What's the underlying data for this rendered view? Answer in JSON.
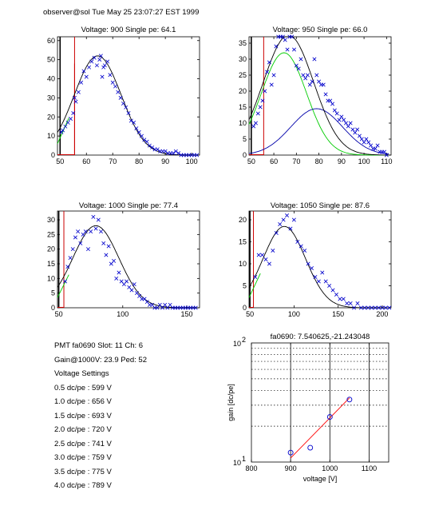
{
  "header": "observer@sol  Tue May 25 23:07:27 EST 1999",
  "info": {
    "pmt_line": "PMT fa0690 Slot: 11 Ch: 6",
    "gain_line": "Gain@1000V: 23.9 Ped: 52",
    "settings_title": "Voltage Settings",
    "settings": [
      "0.5 dc/pe : 599 V",
      "1.0 dc/pe : 656 V",
      "1.5 dc/pe : 693 V",
      "2.0 dc/pe : 720 V",
      "2.5 dc/pe : 741 V",
      "3.0 dc/pe : 759 V",
      "3.5 dc/pe : 775 V",
      "4.0 dc/pe : 789 V"
    ]
  },
  "colors": {
    "data": "#0000cc",
    "fit": "#000000",
    "single_pe": "#00cc00",
    "second_pe": "#0000aa",
    "pedestal": "#cc0000",
    "gain_fit": "#ff0000"
  },
  "chart_data": [
    {
      "type": "scatter",
      "title": "Voltage: 900 Single pe: 64.1",
      "xlim": [
        49,
        103
      ],
      "ylim": [
        0,
        62
      ],
      "xticks": [
        50,
        60,
        70,
        80,
        90,
        100
      ],
      "yticks": [
        0,
        10,
        20,
        30,
        40,
        50,
        60
      ],
      "pedestal_marks": [
        {
          "x": 50,
          "y": 62
        },
        {
          "x": 55.5,
          "y": 62
        },
        {
          "x": 55.5,
          "y": 48
        }
      ],
      "fit": {
        "peak": 52,
        "mean": 64.3,
        "sigma": 8.9,
        "from": 49,
        "to": 100
      },
      "points": [
        [
          50.5,
          12
        ],
        [
          51,
          13
        ],
        [
          52,
          15
        ],
        [
          53,
          17
        ],
        [
          54,
          19
        ],
        [
          55,
          22
        ],
        [
          55.5,
          30
        ],
        [
          56,
          28
        ],
        [
          57,
          33
        ],
        [
          58,
          38
        ],
        [
          59,
          44
        ],
        [
          60,
          41
        ],
        [
          61,
          46
        ],
        [
          62,
          49
        ],
        [
          63,
          51
        ],
        [
          64,
          47
        ],
        [
          65,
          50
        ],
        [
          65.5,
          52
        ],
        [
          66,
          41
        ],
        [
          66.5,
          46
        ],
        [
          67,
          47
        ],
        [
          68,
          49
        ],
        [
          69,
          42
        ],
        [
          70,
          38
        ],
        [
          71,
          36
        ],
        [
          72,
          33
        ],
        [
          73,
          30
        ],
        [
          74,
          27
        ],
        [
          75,
          25
        ],
        [
          76,
          22
        ],
        [
          77,
          18
        ],
        [
          78,
          17
        ],
        [
          79,
          14
        ],
        [
          80,
          12
        ],
        [
          81,
          10
        ],
        [
          82,
          8
        ],
        [
          83,
          7
        ],
        [
          84,
          5
        ],
        [
          85,
          4
        ],
        [
          86,
          3
        ],
        [
          87,
          3
        ],
        [
          88,
          2
        ],
        [
          89,
          2
        ],
        [
          90,
          2
        ],
        [
          91,
          1
        ],
        [
          92,
          1
        ],
        [
          93,
          1
        ],
        [
          94,
          2
        ],
        [
          95,
          1
        ],
        [
          96,
          0
        ],
        [
          97,
          0
        ],
        [
          98,
          0
        ],
        [
          99,
          0
        ],
        [
          100,
          0
        ],
        [
          101,
          0
        ],
        [
          102,
          0
        ]
      ]
    },
    {
      "type": "scatter",
      "title": "Voltage: 950 Single pe: 66.0",
      "xlim": [
        49,
        112
      ],
      "ylim": [
        0,
        37
      ],
      "xticks": [
        50,
        60,
        70,
        80,
        90,
        100,
        110
      ],
      "yticks": [
        0,
        5,
        10,
        15,
        20,
        25,
        30,
        35
      ],
      "pedestal_marks": [
        {
          "x": 50,
          "y": 37
        },
        {
          "x": 55.5,
          "y": 37
        }
      ],
      "fit": {
        "peak": 37.5,
        "mean": 66.5,
        "sigma": 11.2,
        "from": 49,
        "to": 111
      },
      "fit_components": [
        {
          "color_key": "single_pe",
          "peak": 32,
          "mean": 64.5,
          "sigma": 10,
          "from": 49,
          "to": 111
        },
        {
          "color_key": "second_pe",
          "peak": 14.5,
          "mean": 79,
          "sigma": 11.5,
          "from": 49,
          "to": 111
        }
      ],
      "points": [
        [
          51,
          9
        ],
        [
          52,
          10
        ],
        [
          53,
          13
        ],
        [
          54,
          15
        ],
        [
          55,
          17
        ],
        [
          56,
          20
        ],
        [
          57,
          26
        ],
        [
          58,
          29
        ],
        [
          59,
          22
        ],
        [
          60,
          25
        ],
        [
          61,
          34
        ],
        [
          62,
          38
        ],
        [
          63,
          37
        ],
        [
          64,
          39
        ],
        [
          65,
          36
        ],
        [
          66,
          33
        ],
        [
          67,
          38
        ],
        [
          68,
          37
        ],
        [
          69,
          33
        ],
        [
          70,
          28
        ],
        [
          71,
          27
        ],
        [
          72,
          30
        ],
        [
          73,
          25
        ],
        [
          74,
          24
        ],
        [
          75,
          25
        ],
        [
          76,
          22
        ],
        [
          77,
          23
        ],
        [
          78,
          30
        ],
        [
          79,
          25
        ],
        [
          80,
          23
        ],
        [
          81,
          22
        ],
        [
          82,
          22
        ],
        [
          83,
          19
        ],
        [
          84,
          17
        ],
        [
          85,
          17
        ],
        [
          86,
          16
        ],
        [
          87,
          14
        ],
        [
          88,
          13
        ],
        [
          89,
          11
        ],
        [
          90,
          12
        ],
        [
          91,
          11
        ],
        [
          92,
          10
        ],
        [
          93,
          9
        ],
        [
          94,
          10
        ],
        [
          95,
          8
        ],
        [
          96,
          7
        ],
        [
          97,
          8
        ],
        [
          98,
          6
        ],
        [
          99,
          5
        ],
        [
          100,
          4
        ],
        [
          101,
          5
        ],
        [
          102,
          4
        ],
        [
          103,
          3
        ],
        [
          104,
          2
        ],
        [
          105,
          2
        ],
        [
          106,
          3
        ],
        [
          107,
          1
        ],
        [
          108,
          1
        ],
        [
          109,
          1
        ],
        [
          110,
          0
        ]
      ]
    },
    {
      "type": "scatter",
      "title": "Voltage: 1000 Single pe: 77.4",
      "xlim": [
        49,
        160
      ],
      "ylim": [
        0,
        33
      ],
      "xticks": [
        50,
        100,
        150
      ],
      "yticks": [
        0,
        5,
        10,
        15,
        20,
        25,
        30
      ],
      "pedestal_marks": [
        {
          "x": 50,
          "y": 33
        },
        {
          "x": 54,
          "y": 33
        }
      ],
      "fit": {
        "peak": 28,
        "mean": 79,
        "sigma": 18,
        "from": 49,
        "to": 158
      },
      "points": [
        [
          55,
          9
        ],
        [
          57,
          14
        ],
        [
          59,
          17
        ],
        [
          61,
          20
        ],
        [
          63,
          24
        ],
        [
          65,
          26
        ],
        [
          67,
          22
        ],
        [
          69,
          25
        ],
        [
          71,
          26
        ],
        [
          73,
          20
        ],
        [
          75,
          26
        ],
        [
          77,
          31
        ],
        [
          79,
          27
        ],
        [
          81,
          30
        ],
        [
          83,
          26
        ],
        [
          85,
          22
        ],
        [
          87,
          18
        ],
        [
          89,
          21
        ],
        [
          91,
          15
        ],
        [
          93,
          16
        ],
        [
          95,
          10
        ],
        [
          97,
          12
        ],
        [
          99,
          9
        ],
        [
          101,
          8
        ],
        [
          103,
          9
        ],
        [
          105,
          7
        ],
        [
          107,
          6
        ],
        [
          109,
          8
        ],
        [
          111,
          5
        ],
        [
          113,
          4
        ],
        [
          115,
          3
        ],
        [
          117,
          3
        ],
        [
          119,
          2
        ],
        [
          121,
          1
        ],
        [
          123,
          1
        ],
        [
          125,
          0
        ],
        [
          127,
          0
        ],
        [
          129,
          1
        ],
        [
          131,
          0
        ],
        [
          133,
          1
        ],
        [
          135,
          0
        ],
        [
          137,
          1
        ],
        [
          139,
          0
        ],
        [
          141,
          0
        ],
        [
          143,
          0
        ],
        [
          145,
          0
        ],
        [
          147,
          0
        ],
        [
          149,
          0
        ],
        [
          151,
          0
        ],
        [
          153,
          0
        ],
        [
          155,
          0
        ],
        [
          157,
          0
        ]
      ]
    },
    {
      "type": "scatter",
      "title": "Voltage: 1050 Single pe: 87.6",
      "xlim": [
        49,
        210
      ],
      "ylim": [
        0,
        22
      ],
      "xticks": [
        50,
        100,
        150,
        200
      ],
      "yticks": [
        0,
        5,
        10,
        15,
        20
      ],
      "pedestal_marks": [
        {
          "x": 50,
          "y": 22
        },
        {
          "x": 54,
          "y": 22
        }
      ],
      "fit": {
        "peak": 18.5,
        "mean": 89,
        "sigma": 24,
        "from": 49,
        "to": 205
      },
      "points": [
        [
          56,
          7
        ],
        [
          60,
          12
        ],
        [
          64,
          12
        ],
        [
          68,
          11
        ],
        [
          72,
          10
        ],
        [
          76,
          13
        ],
        [
          80,
          17
        ],
        [
          84,
          19
        ],
        [
          88,
          20
        ],
        [
          92,
          21
        ],
        [
          96,
          18
        ],
        [
          100,
          20
        ],
        [
          104,
          15
        ],
        [
          108,
          14
        ],
        [
          112,
          13
        ],
        [
          116,
          10
        ],
        [
          120,
          9
        ],
        [
          124,
          7
        ],
        [
          128,
          6
        ],
        [
          132,
          8
        ],
        [
          136,
          6
        ],
        [
          140,
          5
        ],
        [
          144,
          4
        ],
        [
          148,
          3
        ],
        [
          152,
          2
        ],
        [
          156,
          2
        ],
        [
          160,
          1
        ],
        [
          164,
          1
        ],
        [
          168,
          0
        ],
        [
          172,
          1
        ],
        [
          176,
          0
        ],
        [
          180,
          0
        ],
        [
          184,
          0
        ],
        [
          188,
          0
        ],
        [
          192,
          0
        ],
        [
          196,
          0
        ],
        [
          200,
          0
        ],
        [
          204,
          0
        ],
        [
          208,
          0
        ]
      ]
    },
    {
      "type": "scatter",
      "title": "fa0690: 7.540625,-21.243048",
      "xlabel": "voltage [V]",
      "ylabel": "gain [dc/pe]",
      "xlim": [
        800,
        1150
      ],
      "ylim": [
        10,
        100
      ],
      "yscale": "log",
      "xticks": [
        800,
        900,
        1000,
        1100
      ],
      "ytick_labels": [
        {
          "value": 10,
          "base": "10",
          "exp": "1"
        },
        {
          "value": 100,
          "base": "10",
          "exp": "2"
        }
      ],
      "grid": true,
      "points": [
        [
          900,
          12.0
        ],
        [
          950,
          13.2
        ],
        [
          1000,
          23.9
        ],
        [
          1050,
          33.5
        ]
      ],
      "fit_line": {
        "slope_log": 7.540625,
        "intercept_log": -21.243048,
        "from": 900,
        "to": 1050
      }
    }
  ]
}
